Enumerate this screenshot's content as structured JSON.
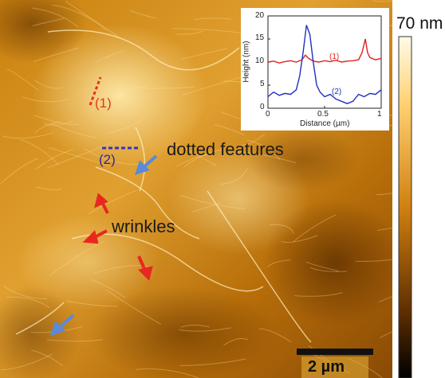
{
  "colorbar": {
    "max_label": "70 nm"
  },
  "annotations": {
    "dotted_features": "dotted features",
    "wrinkles": "wrinkles",
    "marker_1": "(1)",
    "marker_2": "(2)"
  },
  "scale_bar": {
    "label": "2 µm"
  },
  "inset": {
    "xlabel": "Distance (µm)",
    "ylabel": "Height (nm)",
    "x_ticks": [
      "0",
      "0.5",
      "1"
    ],
    "y_ticks": [
      "0",
      "5",
      "10",
      "15",
      "20"
    ],
    "series_labels": [
      "(1)",
      "(2)"
    ],
    "colors": {
      "series_1": "#e02020",
      "series_2": "#2030c0"
    }
  },
  "chart_data": {
    "type": "line",
    "xlabel": "Distance (µm)",
    "ylabel": "Height (nm)",
    "xlim": [
      0,
      1
    ],
    "ylim": [
      0,
      20
    ],
    "series": [
      {
        "name": "(1)",
        "x": [
          0,
          0.05,
          0.1,
          0.15,
          0.2,
          0.25,
          0.3,
          0.33,
          0.36,
          0.4,
          0.45,
          0.5,
          0.55,
          0.6,
          0.65,
          0.7,
          0.75,
          0.8,
          0.83,
          0.86,
          0.88,
          0.9,
          0.95,
          1.0
        ],
        "y": [
          10,
          10.2,
          9.8,
          10.1,
          10.3,
          10,
          10.5,
          11.5,
          10.8,
          10.2,
          10,
          10.3,
          10.1,
          10.4,
          10,
          10.2,
          10.3,
          10.5,
          12,
          15,
          12,
          11,
          10.5,
          10.8
        ]
      },
      {
        "name": "(2)",
        "x": [
          0,
          0.05,
          0.1,
          0.15,
          0.2,
          0.25,
          0.28,
          0.31,
          0.34,
          0.37,
          0.4,
          0.43,
          0.46,
          0.5,
          0.55,
          0.6,
          0.65,
          0.7,
          0.75,
          0.8,
          0.85,
          0.9,
          0.95,
          1.0
        ],
        "y": [
          2.5,
          3.5,
          2.8,
          3.2,
          3,
          4,
          7,
          12,
          18,
          16,
          10,
          5,
          3.5,
          2.5,
          3,
          2,
          1.5,
          1,
          1.5,
          3,
          2.5,
          3.2,
          3,
          4
        ]
      }
    ]
  }
}
